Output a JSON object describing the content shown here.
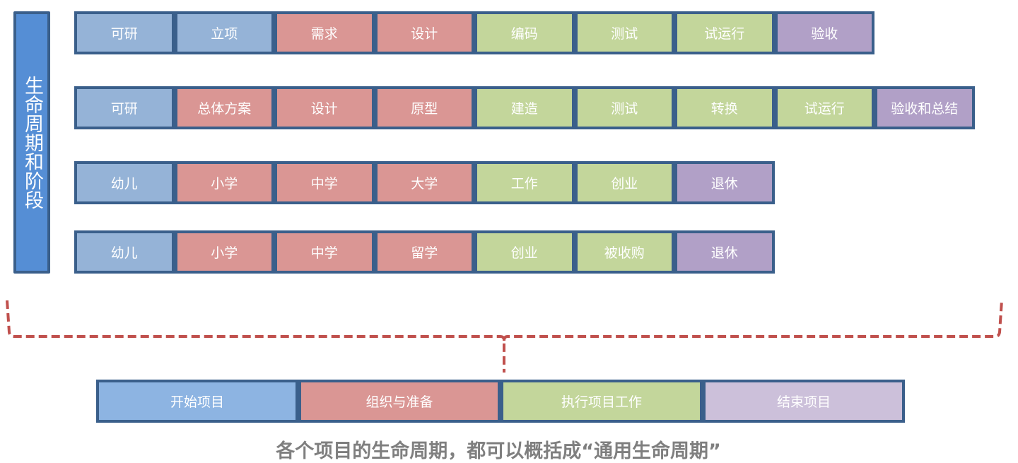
{
  "colors": {
    "blue": "#95B3D7",
    "red": "#DA9694",
    "green": "#C3D69B",
    "purple": "#B1A0C7",
    "border": "#3A5F8B",
    "side": "#558ED5",
    "bottom_blue": "#8DB4E2",
    "bottom_purple": "#CCC0DA",
    "bracket": "#C0504D"
  },
  "side_label": "生命周期和阶段",
  "rows": [
    [
      {
        "label": "可研",
        "c": "blue"
      },
      {
        "label": "立项",
        "c": "blue"
      },
      {
        "label": "需求",
        "c": "red"
      },
      {
        "label": "设计",
        "c": "red"
      },
      {
        "label": "编码",
        "c": "green"
      },
      {
        "label": "测试",
        "c": "green"
      },
      {
        "label": "试运行",
        "c": "green"
      },
      {
        "label": "验收",
        "c": "purple"
      }
    ],
    [
      {
        "label": "可研",
        "c": "blue"
      },
      {
        "label": "总体方案",
        "c": "red"
      },
      {
        "label": "设计",
        "c": "red"
      },
      {
        "label": "原型",
        "c": "red"
      },
      {
        "label": "建造",
        "c": "green"
      },
      {
        "label": "测试",
        "c": "green"
      },
      {
        "label": "转换",
        "c": "green"
      },
      {
        "label": "试运行",
        "c": "green"
      },
      {
        "label": "验收和总结",
        "c": "purple"
      }
    ],
    [
      {
        "label": "幼儿",
        "c": "blue"
      },
      {
        "label": "小学",
        "c": "red"
      },
      {
        "label": "中学",
        "c": "red"
      },
      {
        "label": "大学",
        "c": "red"
      },
      {
        "label": "工作",
        "c": "green"
      },
      {
        "label": "创业",
        "c": "green"
      },
      {
        "label": "退休",
        "c": "purple"
      }
    ],
    [
      {
        "label": "幼儿",
        "c": "blue"
      },
      {
        "label": "小学",
        "c": "red"
      },
      {
        "label": "中学",
        "c": "red"
      },
      {
        "label": "留学",
        "c": "red"
      },
      {
        "label": "创业",
        "c": "green"
      },
      {
        "label": "被收购",
        "c": "green"
      },
      {
        "label": "退休",
        "c": "purple"
      }
    ]
  ],
  "generic": [
    {
      "label": "开始项目",
      "c": "bottom_blue"
    },
    {
      "label": "组织与准备",
      "c": "red"
    },
    {
      "label": "执行项目工作",
      "c": "green"
    },
    {
      "label": "结束项目",
      "c": "bottom_purple"
    }
  ],
  "caption": "各个项目的生命周期，都可以概括成“通用生命周期”"
}
